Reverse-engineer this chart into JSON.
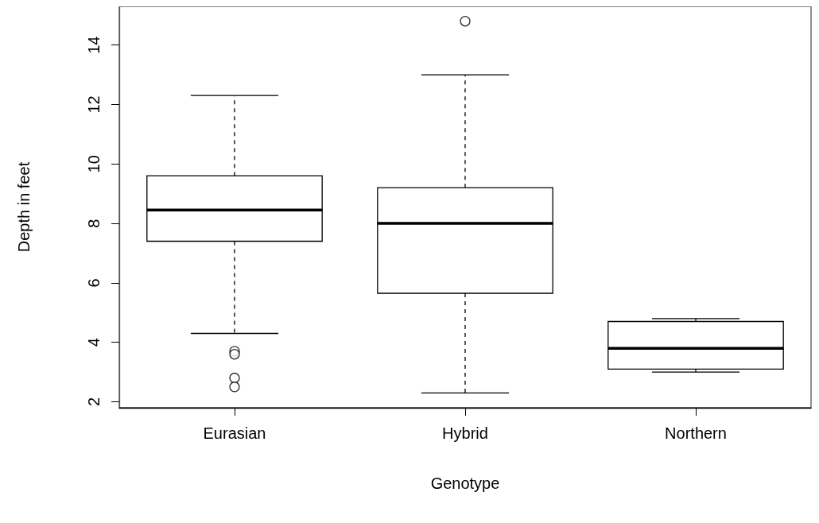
{
  "chart_data": {
    "type": "box",
    "xlabel": "Genotype",
    "ylabel": "Depth in feet",
    "categories": [
      "Eurasian",
      "Hybrid",
      "Northern"
    ],
    "boxes": [
      {
        "low": 4.3,
        "q1": 7.4,
        "median": 8.45,
        "q3": 9.6,
        "high": 12.3,
        "outliers": [
          3.7,
          3.6,
          2.8,
          2.5
        ]
      },
      {
        "low": 2.3,
        "q1": 5.65,
        "median": 8.0,
        "q3": 9.2,
        "high": 13.0,
        "outliers": [
          14.8
        ]
      },
      {
        "low": 3.0,
        "q1": 3.1,
        "median": 3.8,
        "q3": 4.7,
        "high": 4.8
      }
    ],
    "ylim": [
      1.8,
      15.3
    ],
    "yticks": [
      2,
      4,
      6,
      8,
      10,
      12,
      14
    ]
  }
}
